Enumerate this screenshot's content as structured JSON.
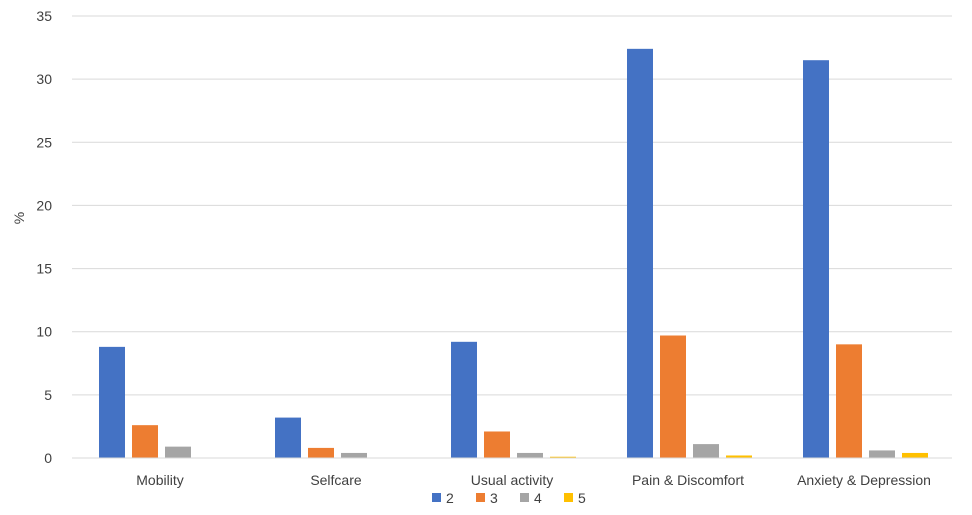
{
  "chart_data": {
    "type": "bar",
    "title": "",
    "xlabel": "",
    "ylabel": "%",
    "categories": [
      "Mobility",
      "Selfcare",
      "Usual activity",
      "Pain & Discomfort",
      "Anxiety & Depression"
    ],
    "series": [
      {
        "name": "2",
        "color": "#4472C4",
        "values": [
          8.8,
          3.2,
          9.2,
          32.4,
          31.5
        ]
      },
      {
        "name": "3",
        "color": "#ED7D31",
        "values": [
          2.6,
          0.8,
          2.1,
          9.7,
          9.0
        ]
      },
      {
        "name": "4",
        "color": "#A5A5A5",
        "values": [
          0.9,
          0.4,
          0.4,
          1.1,
          0.6
        ]
      },
      {
        "name": "5",
        "color": "#FFC000",
        "values": [
          0.0,
          0.0,
          0.1,
          0.2,
          0.4
        ]
      }
    ],
    "ylim": [
      0,
      35
    ],
    "yticks": [
      0,
      5,
      10,
      15,
      20,
      25,
      30,
      35
    ],
    "grid": true,
    "legend_position": "bottom"
  }
}
